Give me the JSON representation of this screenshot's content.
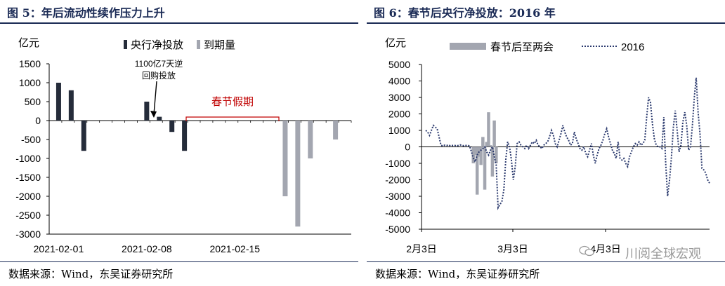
{
  "left": {
    "title": "图 5：年后流动性续作压力上升",
    "source": "数据来源：Wind，东吴证券研究所",
    "chart_data": {
      "type": "bar",
      "unit_label": "亿元",
      "ylim": [
        -3000,
        1500
      ],
      "yticks": [
        1500,
        1000,
        500,
        0,
        -500,
        -1000,
        -1500,
        -2000,
        -2500,
        -3000
      ],
      "xtick_labels": [
        "2021-02-01",
        "2021-02-08",
        "2021-02-15"
      ],
      "legend": [
        "央行净投放",
        "到期量"
      ],
      "colors": {
        "net": "#252c3a",
        "maturity": "#a3a6b0",
        "holiday": "#c00000"
      },
      "series": [
        {
          "name": "央行净投放",
          "points": [
            {
              "day": 1,
              "value": 1000
            },
            {
              "day": 2,
              "value": 800
            },
            {
              "day": 3,
              "value": -800
            },
            {
              "day": 8,
              "value": 500
            },
            {
              "day": 9,
              "value": 100
            },
            {
              "day": 10,
              "value": -300
            },
            {
              "day": 11,
              "value": -800
            }
          ]
        },
        {
          "name": "到期量",
          "points": [
            {
              "day": 19,
              "value": -2000
            },
            {
              "day": 20,
              "value": -2800
            },
            {
              "day": 21,
              "value": -1000
            },
            {
              "day": 23,
              "value": -500
            }
          ]
        }
      ],
      "annotations": {
        "repo_line1": "1100亿7天逆",
        "repo_line2": "回购投放",
        "holiday": "春节假期"
      }
    }
  },
  "right": {
    "title": "图 6：春节后央行净投放：2016 年",
    "source": "数据来源：Wind，东吴证券研究所",
    "watermark": "川阅全球宏观",
    "chart_data": {
      "type": "bar+line",
      "unit_label": "亿元",
      "ylim": [
        -5000,
        5000
      ],
      "yticks": [
        5000,
        4000,
        3000,
        2000,
        1000,
        0,
        -1000,
        -2000,
        -3000,
        -4000,
        -5000
      ],
      "xtick_labels": [
        "2月3日",
        "3月3日",
        "4月3日"
      ],
      "legend": [
        "春节后至两会",
        "2016"
      ],
      "colors": {
        "bars": "#a3a6b0",
        "line": "#2b3a6e"
      },
      "bars": [
        {
          "i": 25,
          "value": -1000
        },
        {
          "i": 26,
          "value": -500
        },
        {
          "i": 27,
          "value": -2900
        },
        {
          "i": 28,
          "value": -600
        },
        {
          "i": 29,
          "value": -1100
        },
        {
          "i": 30,
          "value": 600
        },
        {
          "i": 31,
          "value": -2600
        },
        {
          "i": 32,
          "value": 300
        },
        {
          "i": 33,
          "value": 2100
        },
        {
          "i": 34,
          "value": 100
        },
        {
          "i": 35,
          "value": -1800
        },
        {
          "i": 36,
          "value": 1600
        },
        {
          "i": 37,
          "value": -1000
        }
      ],
      "series_2016": [
        1000,
        900,
        700,
        1000,
        1300,
        1200,
        1100,
        600,
        100,
        50,
        100,
        80,
        120,
        60,
        80,
        100,
        60,
        80,
        120,
        100,
        60,
        80,
        100,
        50,
        -300,
        -700,
        -900,
        -500,
        -300,
        -200,
        -100,
        0,
        -300,
        -500,
        -200,
        0,
        -600,
        -1100,
        -3700,
        -3500,
        -3300,
        -2600,
        -800,
        300,
        0,
        -800,
        -2000,
        -1200,
        200,
        300,
        100,
        0,
        -100,
        100,
        -100,
        100,
        300,
        200,
        400,
        100,
        0,
        -100,
        100,
        200,
        300,
        600,
        1000,
        700,
        200,
        0,
        400,
        800,
        1300,
        900,
        600,
        400,
        100,
        200,
        900,
        500,
        200,
        -100,
        -200,
        0,
        -400,
        -600,
        -200,
        200,
        -500,
        -1000,
        -500,
        -100,
        100,
        400,
        800,
        1100,
        600,
        200,
        -200,
        -400,
        -700,
        300,
        -700,
        -800,
        -700,
        -1000,
        -1200,
        -600,
        -300,
        0,
        200,
        100,
        300,
        100,
        200,
        400,
        1800,
        3000,
        2700,
        1400,
        500,
        100,
        0,
        0,
        -100,
        1800,
        -1000,
        -3000,
        -2000,
        -600,
        1200,
        2200,
        1000,
        -300,
        100,
        1500,
        2100,
        1300,
        -200,
        0,
        1300,
        3000,
        4200,
        2100,
        800,
        -1300,
        -1400,
        -1600,
        -2000,
        -2200
      ]
    }
  }
}
